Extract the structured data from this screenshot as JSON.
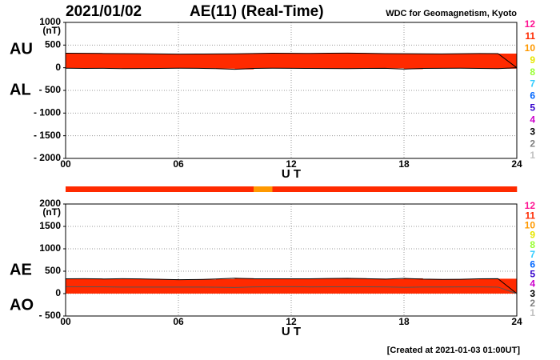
{
  "chart_data": [
    {
      "type": "range",
      "title": "2021/01/02",
      "subtitle": "AE(11) (Real-Time)",
      "source": "WDC for Geomagnetism, Kyoto",
      "ylabel": "(nT)",
      "xlabel": "U T",
      "color": "#ff2a00",
      "x": [
        0,
        1,
        2,
        3,
        4,
        5,
        6,
        7,
        8,
        9,
        10,
        11,
        12,
        13,
        14,
        15,
        16,
        17,
        18,
        19,
        20,
        21,
        22,
        23,
        24
      ],
      "series": [
        {
          "name": "AU",
          "color": "#000000",
          "values": [
            320,
            318,
            315,
            312,
            310,
            305,
            300,
            302,
            305,
            308,
            315,
            320,
            318,
            316,
            320,
            322,
            318,
            312,
            310,
            308,
            305,
            310,
            315,
            312,
            0
          ]
        },
        {
          "name": "AL",
          "color": "#000000",
          "values": [
            -10,
            -15,
            -12,
            -20,
            -18,
            -15,
            -10,
            -12,
            -20,
            -35,
            -15,
            -10,
            -12,
            -15,
            -18,
            -20,
            -15,
            -12,
            -30,
            -15,
            -12,
            -10,
            -15,
            -20,
            0
          ]
        }
      ],
      "xlim": [
        0,
        24
      ],
      "xticks": [
        {
          "value": 0,
          "label": "00"
        },
        {
          "value": 6,
          "label": "06"
        },
        12,
        18,
        24
      ],
      "ylim": [
        -2000,
        1000
      ],
      "yticks": [
        1000,
        500,
        0,
        {
          "value": -500,
          "label": "- 500"
        },
        {
          "value": -1000,
          "label": "- 1000"
        },
        {
          "value": -1500,
          "label": "- 1500"
        },
        {
          "value": -2000,
          "label": "- 2000"
        }
      ],
      "grid": true,
      "legend": [
        {
          "label": "12",
          "color": "#ff1493"
        },
        {
          "label": "11",
          "color": "#ff2a00"
        },
        {
          "label": "10",
          "color": "#ff9900"
        },
        {
          "label": "9",
          "color": "#e6e600"
        },
        {
          "label": "8",
          "color": "#99ff33"
        },
        {
          "label": "7",
          "color": "#33ccff"
        },
        {
          "label": "6",
          "color": "#0066ff"
        },
        {
          "label": "5",
          "color": "#3300cc"
        },
        {
          "label": "4",
          "color": "#cc00cc"
        },
        {
          "label": "3",
          "color": "#000000"
        },
        {
          "label": "2",
          "color": "#808080"
        },
        {
          "label": "1",
          "color": "#c0c0c0"
        }
      ]
    },
    {
      "type": "area",
      "ylabel": "(nT)",
      "xlabel": "U T",
      "color": "#ff2a00",
      "footer": "[Created at 2021-01-03 01:00UT]",
      "x": [
        0,
        1,
        2,
        3,
        4,
        5,
        6,
        7,
        8,
        9,
        10,
        11,
        12,
        13,
        14,
        15,
        16,
        17,
        18,
        19,
        20,
        21,
        22,
        23,
        24
      ],
      "series": [
        {
          "name": "AE",
          "color": "#000000",
          "values": [
            330,
            333,
            327,
            332,
            328,
            320,
            310,
            314,
            325,
            343,
            330,
            330,
            330,
            331,
            338,
            342,
            333,
            324,
            340,
            323,
            317,
            320,
            330,
            332,
            0
          ]
        },
        {
          "name": "AO",
          "color": "#555555",
          "values": [
            155,
            151.5,
            151.5,
            146,
            146,
            145,
            145,
            145,
            142.5,
            136.5,
            150,
            155,
            153,
            150.5,
            151,
            151,
            151.5,
            150,
            140,
            146.5,
            146.5,
            150,
            150,
            146,
            0
          ]
        }
      ],
      "station_counts": [
        11,
        11,
        11,
        11,
        11,
        11,
        11,
        11,
        11,
        11,
        10,
        11,
        11,
        11,
        11,
        11,
        11,
        11,
        11,
        11,
        11,
        11,
        11,
        11,
        10
      ],
      "xlim": [
        0,
        24
      ],
      "xticks": [
        {
          "value": 0,
          "label": "00"
        },
        {
          "value": 6,
          "label": "06"
        },
        12,
        18,
        24
      ],
      "ylim": [
        -500,
        2000
      ],
      "yticks": [
        2000,
        1500,
        1000,
        500,
        0,
        {
          "value": -500,
          "label": "- 500"
        }
      ],
      "grid": true,
      "legend": [
        {
          "label": "12",
          "color": "#ff1493"
        },
        {
          "label": "11",
          "color": "#ff2a00"
        },
        {
          "label": "10",
          "color": "#ff9900"
        },
        {
          "label": "9",
          "color": "#e6e600"
        },
        {
          "label": "8",
          "color": "#99ff33"
        },
        {
          "label": "7",
          "color": "#33ccff"
        },
        {
          "label": "6",
          "color": "#0066ff"
        },
        {
          "label": "5",
          "color": "#3300cc"
        },
        {
          "label": "4",
          "color": "#cc00cc"
        },
        {
          "label": "3",
          "color": "#000000"
        },
        {
          "label": "2",
          "color": "#808080"
        },
        {
          "label": "1",
          "color": "#c0c0c0"
        }
      ]
    }
  ]
}
